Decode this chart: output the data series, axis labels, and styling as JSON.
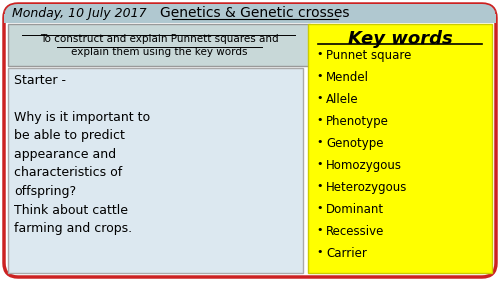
{
  "bg_color": "#ffffff",
  "outer_border_color": "#cc2222",
  "header_bg": "#b0c8d0",
  "header_date": "Monday, 10 July 2017",
  "header_title": "Genetics & Genetic crosses",
  "objective_bg": "#c8d8d8",
  "objective_line1": "To construct and explain Punnett squares and",
  "objective_line2": "explain them using the key words",
  "starter_bg": "#dce8f0",
  "starter_text": "Starter -\n\nWhy is it important to\nbe able to predict\nappearance and\ncharacteristics of\noffspring?\nThink about cattle\nfarming and crops.",
  "keywords_bg": "#ffff00",
  "keywords_title": "Key words",
  "keywords": [
    "Punnet square",
    "Mendel",
    "Allele",
    "Phenotype",
    "Genotype",
    "Homozygous",
    "Heterozygous",
    "Dominant",
    "Recessive",
    "Carrier"
  ],
  "header_fontsize": 9,
  "body_fontsize": 9,
  "keyword_fontsize": 8.5,
  "kw_title_fontsize": 13
}
